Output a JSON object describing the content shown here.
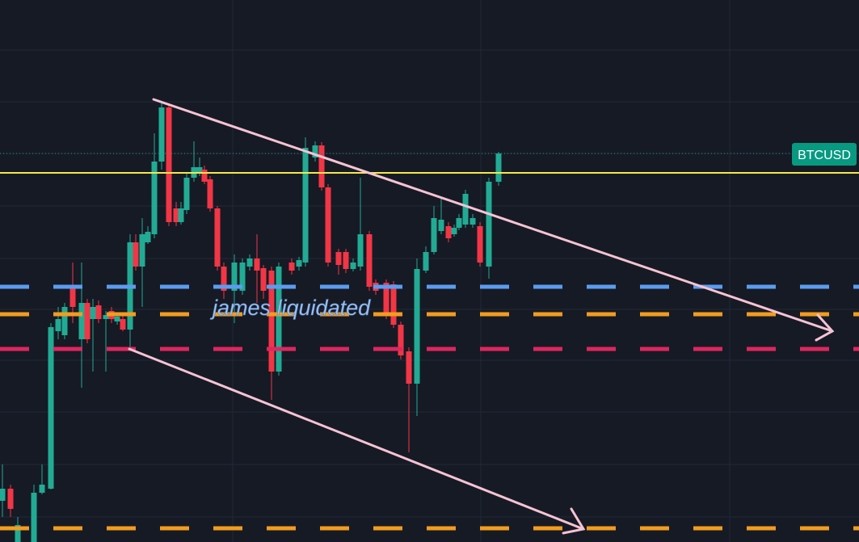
{
  "symbol_label": "BTCUSD",
  "annotation": "james liquidated"
}
